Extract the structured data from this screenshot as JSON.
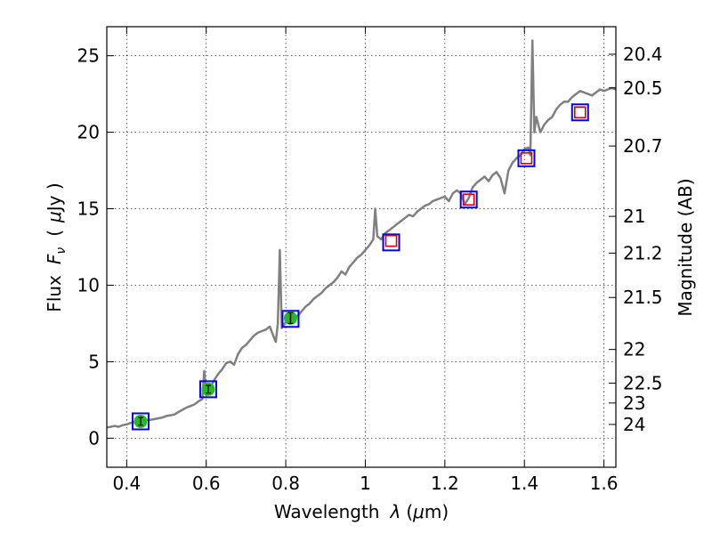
{
  "chart_data": {
    "type": "scatter",
    "title": "",
    "xlabel": "Wavelength  λ (μm)",
    "ylabel": "Flux  F_ν  ( μJy )",
    "ylabel_parts": {
      "flux": "Flux",
      "symbol": "F",
      "subscript": "ν",
      "open": "(",
      "mu": "μ",
      "unit": "Jy )"
    },
    "xlabel_parts": {
      "text": "Wavelength",
      "lambda": "λ",
      "unit_open": "(",
      "mu": "μ",
      "unit_rest": "m)"
    },
    "right_ylabel": "Magnitude (AB)",
    "xlim": [
      0.35,
      1.63
    ],
    "ylim": [
      -1.9,
      26.9
    ],
    "xticks": [
      0.4,
      0.6,
      0.8,
      1.0,
      1.2,
      1.4,
      1.6
    ],
    "xtick_labels": [
      "0.4",
      "0.6",
      "0.8",
      "1",
      "1.2",
      "1.4",
      "1.6"
    ],
    "yticks": [
      0,
      5,
      10,
      15,
      20,
      25
    ],
    "ytick_labels": [
      "0",
      "5",
      "10",
      "15",
      "20",
      "25"
    ],
    "right_ticks": [
      {
        "label": "20.4",
        "flux": 25.1
      },
      {
        "label": "20.5",
        "flux": 22.9
      },
      {
        "label": "20.7",
        "flux": 19.1
      },
      {
        "label": "21",
        "flux": 14.5
      },
      {
        "label": "21.2",
        "flux": 12.1
      },
      {
        "label": "21.5",
        "flux": 9.2
      },
      {
        "label": "22",
        "flux": 5.8
      },
      {
        "label": "22.5",
        "flux": 3.6
      },
      {
        "label": "23",
        "flux": 2.3
      },
      {
        "label": "24",
        "flux": 0.9
      }
    ],
    "grid": true,
    "colors": {
      "spectrum": "#808080",
      "box": "#0000ff",
      "model_marker": "#dd0000",
      "observed": "#22bb22",
      "errorbar": "#000000"
    },
    "series": [
      {
        "name": "spectrum",
        "style": "line",
        "x": [
          0.35,
          0.36,
          0.37,
          0.38,
          0.39,
          0.4,
          0.41,
          0.42,
          0.43,
          0.44,
          0.45,
          0.46,
          0.47,
          0.48,
          0.49,
          0.5,
          0.51,
          0.52,
          0.53,
          0.54,
          0.55,
          0.56,
          0.57,
          0.58,
          0.59,
          0.595,
          0.6,
          0.605,
          0.61,
          0.62,
          0.63,
          0.64,
          0.65,
          0.66,
          0.67,
          0.68,
          0.69,
          0.7,
          0.71,
          0.72,
          0.73,
          0.74,
          0.75,
          0.76,
          0.77,
          0.775,
          0.78,
          0.785,
          0.79,
          0.8,
          0.81,
          0.82,
          0.83,
          0.84,
          0.85,
          0.86,
          0.87,
          0.88,
          0.89,
          0.9,
          0.91,
          0.92,
          0.93,
          0.94,
          0.95,
          0.96,
          0.97,
          0.98,
          0.99,
          1.0,
          1.01,
          1.02,
          1.025,
          1.03,
          1.04,
          1.05,
          1.06,
          1.07,
          1.08,
          1.09,
          1.1,
          1.11,
          1.12,
          1.13,
          1.14,
          1.15,
          1.16,
          1.17,
          1.18,
          1.19,
          1.2,
          1.21,
          1.22,
          1.23,
          1.24,
          1.25,
          1.26,
          1.27,
          1.28,
          1.29,
          1.3,
          1.31,
          1.32,
          1.33,
          1.34,
          1.35,
          1.36,
          1.37,
          1.38,
          1.39,
          1.4,
          1.41,
          1.415,
          1.42,
          1.425,
          1.43,
          1.44,
          1.45,
          1.46,
          1.47,
          1.48,
          1.49,
          1.5,
          1.51,
          1.52,
          1.53,
          1.54,
          1.55,
          1.56,
          1.57,
          1.58,
          1.59,
          1.6,
          1.61,
          1.62,
          1.63
        ],
        "y": [
          0.7,
          0.75,
          0.8,
          0.75,
          0.85,
          0.9,
          1.0,
          1.05,
          1.1,
          1.15,
          1.2,
          1.2,
          1.25,
          1.3,
          1.35,
          1.45,
          1.5,
          1.55,
          1.7,
          1.85,
          2.0,
          2.1,
          2.2,
          2.4,
          2.55,
          4.4,
          2.8,
          3.0,
          3.3,
          3.8,
          4.2,
          4.5,
          4.9,
          5.0,
          4.8,
          5.5,
          5.9,
          6.1,
          6.4,
          6.7,
          6.9,
          7.0,
          7.1,
          7.3,
          6.6,
          6.3,
          7.5,
          12.3,
          7.2,
          7.6,
          7.7,
          7.8,
          8.0,
          8.3,
          8.6,
          8.8,
          9.1,
          9.3,
          9.5,
          9.8,
          10.0,
          10.2,
          10.5,
          10.9,
          10.7,
          11.2,
          11.5,
          11.8,
          12.0,
          12.3,
          12.6,
          13.0,
          15.0,
          13.2,
          13.0,
          13.4,
          13.6,
          13.8,
          14.0,
          14.2,
          14.4,
          14.6,
          14.5,
          14.8,
          15.0,
          15.2,
          15.3,
          15.5,
          15.6,
          15.7,
          15.8,
          15.5,
          16.0,
          16.2,
          16.0,
          15.3,
          15.7,
          16.4,
          16.7,
          16.9,
          17.1,
          16.8,
          17.2,
          17.4,
          17.0,
          16.0,
          17.5,
          18.0,
          18.3,
          18.5,
          18.9,
          19.0,
          18.5,
          26.0,
          20.0,
          21.0,
          20.0,
          20.5,
          20.8,
          21.0,
          21.5,
          21.8,
          22.0,
          22.0,
          22.3,
          22.5,
          22.7,
          22.6,
          22.5,
          22.4,
          22.6,
          22.8,
          22.7,
          22.8,
          22.9,
          22.8
        ]
      },
      {
        "name": "band boxes",
        "style": "blue-open-square",
        "x": [
          0.435,
          0.605,
          0.812,
          1.065,
          1.26,
          1.405,
          1.54
        ],
        "y": [
          1.1,
          3.2,
          7.8,
          12.8,
          15.6,
          18.3,
          21.3
        ]
      },
      {
        "name": "model photometry",
        "style": "red-open-square",
        "x": [
          1.065,
          1.26,
          1.405,
          1.54
        ],
        "y": [
          12.9,
          15.6,
          18.3,
          21.3
        ]
      },
      {
        "name": "observed photometry",
        "style": "green-circle-errorbar",
        "x": [
          0.435,
          0.605,
          0.812
        ],
        "y": [
          1.1,
          3.2,
          7.85
        ],
        "yerr": [
          0.25,
          0.25,
          0.35
        ]
      }
    ]
  }
}
